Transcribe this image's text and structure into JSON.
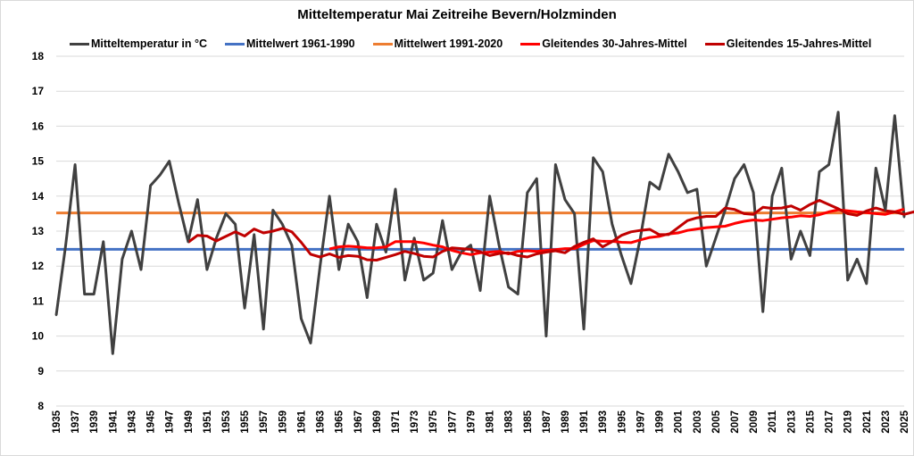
{
  "chart_data": {
    "type": "line",
    "title": "Mitteltemperatur Mai Zeitreihe Bevern/Holzminden",
    "xlabel": "",
    "ylabel": "",
    "ylim": [
      8,
      18
    ],
    "xlim": [
      1935,
      2025
    ],
    "yticks": [
      "8",
      "9",
      "10",
      "11",
      "12",
      "13",
      "14",
      "15",
      "16",
      "17",
      "18"
    ],
    "xticks": [
      "1935",
      "1937",
      "1939",
      "1941",
      "1943",
      "1945",
      "1947",
      "1949",
      "1951",
      "1953",
      "1955",
      "1957",
      "1959",
      "1961",
      "1963",
      "1965",
      "1967",
      "1969",
      "1971",
      "1973",
      "1975",
      "1977",
      "1979",
      "1981",
      "1983",
      "1985",
      "1987",
      "1989",
      "1991",
      "1993",
      "1995",
      "1997",
      "1999",
      "2001",
      "2003",
      "2005",
      "2007",
      "2009",
      "2011",
      "2013",
      "2015",
      "2017",
      "2019",
      "2021",
      "2023",
      "2025"
    ],
    "grid": true,
    "legend_position": "top",
    "series": [
      {
        "name": "Mitteltemperatur in °C",
        "color": "#404040",
        "start_year": 1935,
        "values": [
          10.6,
          12.6,
          14.9,
          11.2,
          11.2,
          12.7,
          9.5,
          12.2,
          13.0,
          11.9,
          14.3,
          14.6,
          15.0,
          13.8,
          12.7,
          13.9,
          11.9,
          12.8,
          13.5,
          13.2,
          10.8,
          12.9,
          10.2,
          13.6,
          13.2,
          12.6,
          10.5,
          9.8,
          12.0,
          14.0,
          11.9,
          13.2,
          12.7,
          11.1,
          13.2,
          12.4,
          14.2,
          11.6,
          12.8,
          11.6,
          11.8,
          13.3,
          11.9,
          12.4,
          12.6,
          11.3,
          14.0,
          12.6,
          11.4,
          11.2,
          14.1,
          14.5,
          10.0,
          14.9,
          13.9,
          13.5,
          10.2,
          15.1,
          14.7,
          13.2,
          12.3,
          11.5,
          12.8,
          14.4,
          14.2,
          15.2,
          14.7,
          14.1,
          14.2,
          12.0,
          12.8,
          13.6,
          14.5,
          14.9,
          14.1,
          10.7,
          14.0,
          14.8,
          12.2,
          13.0,
          12.3,
          14.7,
          14.9,
          16.4,
          11.6,
          12.2,
          11.5,
          14.8,
          13.6,
          16.3,
          13.4
        ]
      },
      {
        "name": "Mittelwert 1961-1990",
        "color": "#4472c4",
        "constant": 12.48
      },
      {
        "name": "Mittelwert 1991-2020",
        "color": "#ed7d31",
        "constant": 13.52
      },
      {
        "name": "Gleitendes 30-Jahres-Mittel",
        "color": "#ff0000",
        "start_year": 1964,
        "values": [
          12.49,
          12.55,
          12.57,
          12.55,
          12.52,
          12.52,
          12.55,
          12.7,
          12.7,
          12.7,
          12.66,
          12.6,
          12.55,
          12.45,
          12.38,
          12.33,
          12.38,
          12.4,
          12.42,
          12.35,
          12.42,
          12.44,
          12.42,
          12.45,
          12.47,
          12.5,
          12.5,
          12.62,
          12.73,
          12.71,
          12.71,
          12.68,
          12.67,
          12.75,
          12.82,
          12.85,
          12.92,
          12.95,
          13.02,
          13.06,
          13.1,
          13.12,
          13.14,
          13.22,
          13.28,
          13.32,
          13.3,
          13.34,
          13.38,
          13.4,
          13.44,
          13.42,
          13.47,
          13.55,
          13.61,
          13.58,
          13.55,
          13.53,
          13.5,
          13.48,
          13.55,
          13.63
        ]
      },
      {
        "name": "Gleitendes 15-Jahres-Mittel",
        "color": "#c00000",
        "start_year": 1949,
        "values": [
          12.68,
          12.88,
          12.86,
          12.72,
          12.85,
          12.98,
          12.86,
          13.06,
          12.95,
          13.0,
          13.08,
          12.98,
          12.68,
          12.34,
          12.26,
          12.35,
          12.25,
          12.3,
          12.28,
          12.18,
          12.17,
          12.25,
          12.33,
          12.42,
          12.36,
          12.28,
          12.26,
          12.42,
          12.52,
          12.5,
          12.48,
          12.41,
          12.3,
          12.36,
          12.38,
          12.3,
          12.26,
          12.35,
          12.4,
          12.44,
          12.38,
          12.56,
          12.68,
          12.78,
          12.55,
          12.7,
          12.88,
          12.98,
          13.02,
          13.05,
          12.9,
          12.9,
          13.1,
          13.3,
          13.38,
          13.42,
          13.42,
          13.66,
          13.62,
          13.5,
          13.48,
          13.68,
          13.65,
          13.66,
          13.72,
          13.6,
          13.76,
          13.88,
          13.76,
          13.64,
          13.5,
          13.45,
          13.58,
          13.66,
          13.58,
          13.55,
          13.48,
          13.55,
          13.4,
          13.62,
          13.66
        ]
      }
    ]
  }
}
